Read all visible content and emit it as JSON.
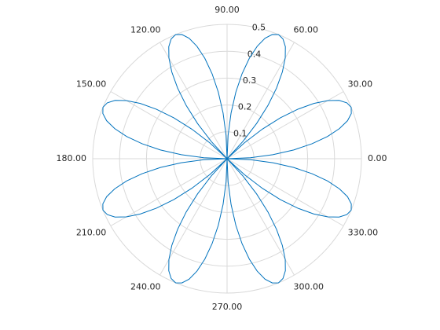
{
  "chart_data": {
    "type": "polar",
    "color": "#0072bd",
    "rlim": [
      0,
      0.5
    ],
    "rticks": [
      0.1,
      0.2,
      0.3,
      0.4,
      0.5
    ],
    "thetaticks": [
      {
        "value": 0,
        "label": "0.00"
      },
      {
        "value": 30,
        "label": "30.00"
      },
      {
        "value": 60,
        "label": "60.00"
      },
      {
        "value": 90,
        "label": "90.00"
      },
      {
        "value": 120,
        "label": "120.00"
      },
      {
        "value": 150,
        "label": "150.00"
      },
      {
        "value": 180,
        "label": "180.00"
      },
      {
        "value": 210,
        "label": "210.00"
      },
      {
        "value": 240,
        "label": "240.00"
      },
      {
        "value": 270,
        "label": "270.00"
      },
      {
        "value": 300,
        "label": "300.00"
      },
      {
        "value": 330,
        "label": "330.00"
      }
    ],
    "grid": true,
    "theta": [
      0,
      2.5,
      5,
      7.5,
      10,
      12.5,
      15,
      17.5,
      20,
      22.5,
      25,
      27.5,
      30,
      32.5,
      35,
      37.5,
      40,
      42.5,
      45,
      47.5,
      50,
      52.5,
      55,
      57.5,
      60,
      62.5,
      65,
      67.5,
      70,
      72.5,
      75,
      77.5,
      80,
      82.5,
      85,
      87.5,
      90,
      92.5,
      95,
      97.5,
      100,
      102.5,
      105,
      107.5,
      110,
      112.5,
      115,
      117.5,
      120,
      122.5,
      125,
      127.5,
      130,
      132.5,
      135,
      137.5,
      140,
      142.5,
      145,
      147.5,
      150,
      152.5,
      155,
      157.5,
      160,
      162.5,
      165,
      167.5,
      170,
      172.5,
      175,
      177.5,
      180,
      182.5,
      185,
      187.5,
      190,
      192.5,
      195,
      197.5,
      200,
      202.5,
      205,
      207.5,
      210,
      212.5,
      215,
      217.5,
      220,
      222.5,
      225,
      227.5,
      230,
      232.5,
      235,
      237.5,
      240,
      242.5,
      245,
      247.5,
      250,
      252.5,
      255,
      257.5,
      260,
      262.5,
      265,
      267.5,
      270,
      272.5,
      275,
      277.5,
      280,
      282.5,
      285,
      287.5,
      290,
      292.5,
      295,
      297.5,
      300,
      302.5,
      305,
      307.5,
      310,
      312.5,
      315,
      317.5,
      320,
      322.5,
      325,
      327.5,
      330,
      332.5,
      335,
      337.5,
      340,
      342.5,
      345,
      347.5,
      350,
      352.5,
      355,
      357.5,
      360
    ],
    "r": [
      0,
      0.087,
      0.171,
      0.25,
      0.321,
      0.383,
      0.433,
      0.47,
      0.492,
      0.5,
      0.492,
      0.47,
      0.433,
      0.383,
      0.321,
      0.25,
      0.171,
      0.087,
      0,
      0.087,
      0.171,
      0.25,
      0.321,
      0.383,
      0.433,
      0.47,
      0.492,
      0.5,
      0.492,
      0.47,
      0.433,
      0.383,
      0.321,
      0.25,
      0.171,
      0.087,
      0,
      0.087,
      0.171,
      0.25,
      0.321,
      0.383,
      0.433,
      0.47,
      0.492,
      0.5,
      0.492,
      0.47,
      0.433,
      0.383,
      0.321,
      0.25,
      0.171,
      0.087,
      0,
      0.087,
      0.171,
      0.25,
      0.321,
      0.383,
      0.433,
      0.47,
      0.492,
      0.5,
      0.492,
      0.47,
      0.433,
      0.383,
      0.321,
      0.25,
      0.171,
      0.087,
      0,
      0.087,
      0.171,
      0.25,
      0.321,
      0.383,
      0.433,
      0.47,
      0.492,
      0.5,
      0.492,
      0.47,
      0.433,
      0.383,
      0.321,
      0.25,
      0.171,
      0.087,
      0,
      0.087,
      0.171,
      0.25,
      0.321,
      0.383,
      0.433,
      0.47,
      0.492,
      0.5,
      0.492,
      0.47,
      0.433,
      0.383,
      0.321,
      0.25,
      0.171,
      0.087,
      0,
      0.087,
      0.171,
      0.25,
      0.321,
      0.383,
      0.433,
      0.47,
      0.492,
      0.5,
      0.492,
      0.47,
      0.433,
      0.383,
      0.321,
      0.25,
      0.171,
      0.087,
      0,
      0.087,
      0.171,
      0.25,
      0.321,
      0.383,
      0.433,
      0.47,
      0.492,
      0.5,
      0.492,
      0.47,
      0.433,
      0.383,
      0.321,
      0.25,
      0.171,
      0.087,
      0
    ]
  }
}
